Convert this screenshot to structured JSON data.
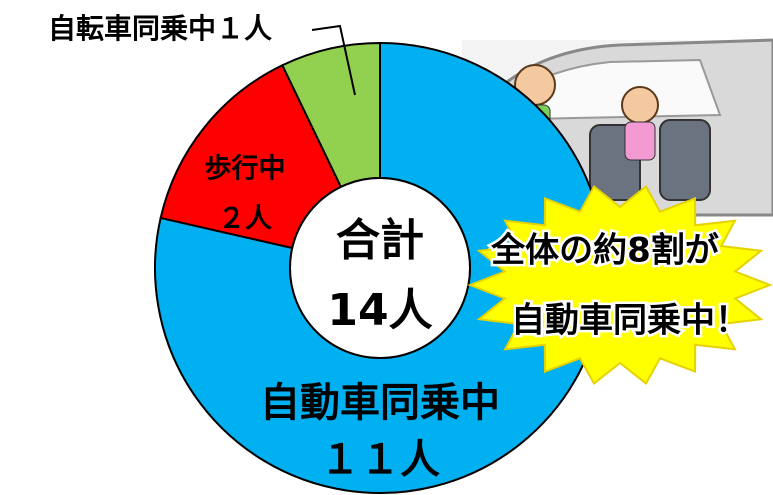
{
  "chart_data": {
    "type": "donut",
    "categories": [
      "自動車同乗中",
      "歩行中",
      "自転車同乗中"
    ],
    "values": [
      11,
      2,
      1
    ],
    "value_labels": [
      "１１人",
      "２人",
      "１人"
    ],
    "colors": [
      "#00b0f0",
      "#ff0000",
      "#92d050"
    ],
    "center_text": [
      "合計",
      "14人"
    ],
    "annotation": [
      "全体の約8割が",
      "自動車同乗中！"
    ]
  }
}
